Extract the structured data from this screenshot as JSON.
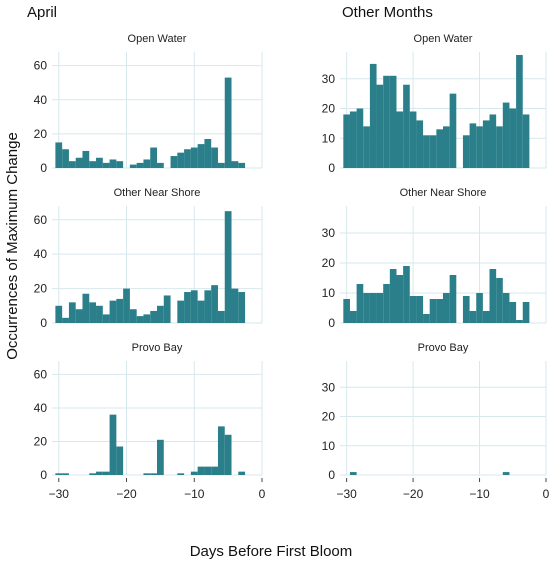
{
  "figure": {
    "ylabel": "Occurrences of Maximum Change",
    "xlabel": "Days Before First Bloom",
    "column_titles": [
      "April",
      "Other Months"
    ],
    "bar_color": "#2a7f8a",
    "grid_color": "#d6e8ee"
  },
  "chart_data": [
    {
      "type": "bar",
      "column": "April",
      "title": "Open Water",
      "x": [
        -30,
        -29,
        -28,
        -27,
        -26,
        -25,
        -24,
        -23,
        -22,
        -21,
        -20,
        -19,
        -18,
        -17,
        -16,
        -15,
        -14,
        -13,
        -12,
        -11,
        -10,
        -9,
        -8,
        -7,
        -6,
        -5,
        -4,
        -3
      ],
      "values": [
        15,
        11,
        4,
        6,
        10,
        4,
        6,
        3,
        5,
        4,
        null,
        2,
        3,
        5,
        12,
        3,
        null,
        7,
        9,
        11,
        12,
        14,
        17,
        12,
        3,
        53,
        4,
        3
      ],
      "ylim": [
        0,
        68
      ],
      "yticks": [
        0,
        20,
        40,
        60
      ],
      "xlim": [
        -31,
        0
      ],
      "xticks": [
        -30,
        -20,
        -10,
        0
      ]
    },
    {
      "type": "bar",
      "column": "Other Months",
      "title": "Open Water",
      "x": [
        -30,
        -29,
        -28,
        -27,
        -26,
        -25,
        -24,
        -23,
        -22,
        -21,
        -20,
        -19,
        -18,
        -17,
        -16,
        -15,
        -14,
        -13,
        -12,
        -11,
        -10,
        -9,
        -8,
        -7,
        -6,
        -5,
        -4,
        -3
      ],
      "values": [
        18,
        19,
        20,
        14,
        35,
        28,
        31,
        31,
        19,
        28,
        19,
        16,
        11,
        11,
        13,
        14,
        25,
        null,
        11,
        15,
        14,
        16,
        18,
        14,
        22,
        20,
        38,
        18
      ],
      "ylim": [
        0,
        39
      ],
      "yticks": [
        0,
        10,
        20,
        30
      ],
      "xlim": [
        -31,
        0
      ],
      "xticks": [
        -30,
        -20,
        -10,
        0
      ]
    },
    {
      "type": "bar",
      "column": "April",
      "title": "Other Near Shore",
      "x": [
        -30,
        -29,
        -28,
        -27,
        -26,
        -25,
        -24,
        -23,
        -22,
        -21,
        -20,
        -19,
        -18,
        -17,
        -16,
        -15,
        -14,
        -13,
        -12,
        -11,
        -10,
        -9,
        -8,
        -7,
        -6,
        -5,
        -4,
        -3
      ],
      "values": [
        10,
        3,
        12,
        8,
        17,
        12,
        10,
        5,
        13,
        14,
        20,
        8,
        4,
        5,
        7,
        10,
        16,
        null,
        13,
        18,
        19,
        13,
        19,
        22,
        7,
        65,
        20,
        18
      ],
      "ylim": [
        0,
        68
      ],
      "yticks": [
        0,
        20,
        40,
        60
      ],
      "xlim": [
        -31,
        0
      ],
      "xticks": [
        -30,
        -20,
        -10,
        0
      ]
    },
    {
      "type": "bar",
      "column": "Other Months",
      "title": "Other Near Shore",
      "x": [
        -30,
        -29,
        -28,
        -27,
        -26,
        -25,
        -24,
        -23,
        -22,
        -21,
        -20,
        -19,
        -18,
        -17,
        -16,
        -15,
        -14,
        -13,
        -12,
        -11,
        -10,
        -9,
        -8,
        -7,
        -6,
        -5,
        -4,
        -3
      ],
      "values": [
        8,
        4,
        13,
        10,
        10,
        10,
        13,
        18,
        16,
        19,
        9,
        9,
        3,
        8,
        8,
        10,
        16,
        null,
        9,
        4,
        10,
        4,
        18,
        15,
        10,
        7,
        1,
        7
      ],
      "ylim": [
        0,
        39
      ],
      "yticks": [
        0,
        10,
        20,
        30
      ],
      "xlim": [
        -31,
        0
      ],
      "xticks": [
        -30,
        -20,
        -10,
        0
      ]
    },
    {
      "type": "bar",
      "column": "April",
      "title": "Provo Bay",
      "x": [
        -30,
        -29,
        -28,
        -27,
        -26,
        -25,
        -24,
        -23,
        -22,
        -21,
        -20,
        -19,
        -18,
        -17,
        -16,
        -15,
        -14,
        -13,
        -12,
        -11,
        -10,
        -9,
        -8,
        -7,
        -6,
        -5,
        -4,
        -3
      ],
      "values": [
        1,
        1,
        0,
        0,
        0,
        1,
        2,
        2,
        36,
        17,
        0,
        0,
        0,
        1,
        1,
        21,
        0,
        0,
        1,
        0,
        2,
        5,
        5,
        5,
        29,
        24,
        0,
        2
      ],
      "ylim": [
        0,
        68
      ],
      "yticks": [
        0,
        20,
        40,
        60
      ],
      "xlim": [
        -31,
        0
      ],
      "xticks": [
        -30,
        -20,
        -10,
        0
      ]
    },
    {
      "type": "bar",
      "column": "Other Months",
      "title": "Provo Bay",
      "x": [
        -30,
        -29,
        -28,
        -27,
        -26,
        -25,
        -24,
        -23,
        -22,
        -21,
        -20,
        -19,
        -18,
        -17,
        -16,
        -15,
        -14,
        -13,
        -12,
        -11,
        -10,
        -9,
        -8,
        -7,
        -6,
        -5,
        -4,
        -3
      ],
      "values": [
        0,
        1,
        0,
        0,
        0,
        0,
        0,
        0,
        0,
        0,
        0,
        0,
        0,
        0,
        0,
        0,
        0,
        0,
        0,
        0,
        0,
        0,
        0,
        0,
        1,
        0,
        0,
        0
      ],
      "ylim": [
        0,
        39
      ],
      "yticks": [
        0,
        10,
        20,
        30
      ],
      "xlim": [
        -31,
        0
      ],
      "xticks": [
        -30,
        -20,
        -10,
        0
      ]
    }
  ]
}
